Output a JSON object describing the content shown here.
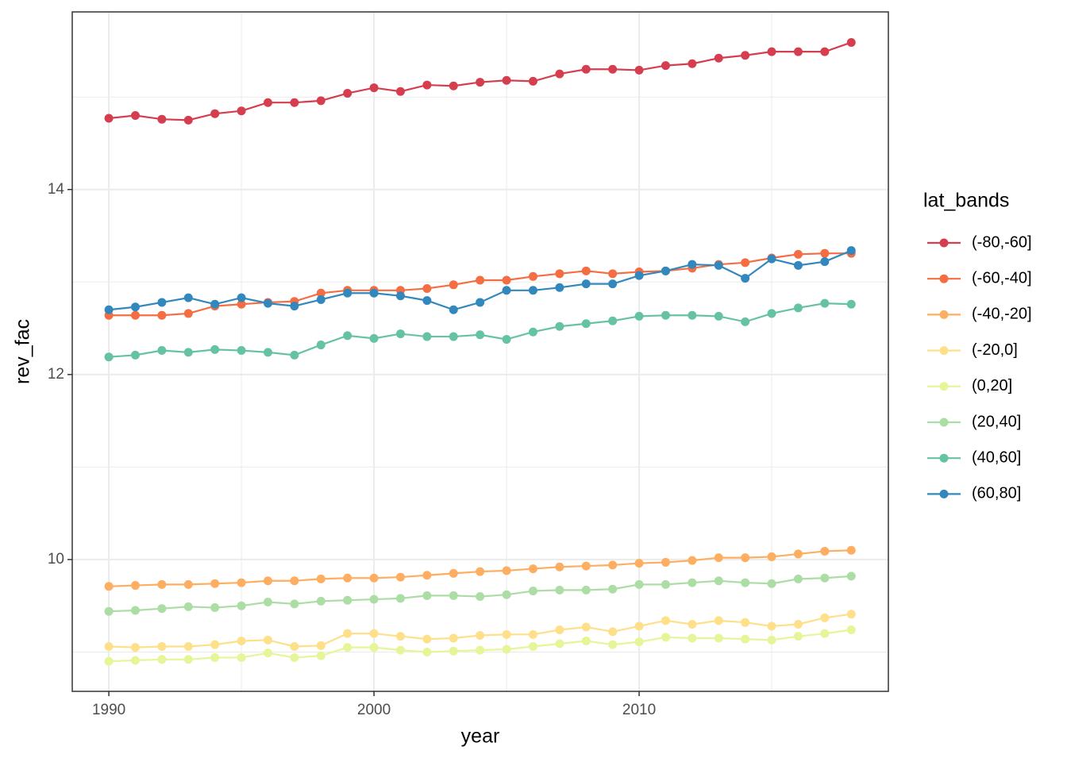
{
  "chart_data": {
    "type": "line",
    "x_label": "year",
    "y_label": "rev_fac",
    "legend_title": "lat_bands",
    "legend_position": "right",
    "grid": true,
    "x": [
      1990,
      1991,
      1992,
      1993,
      1994,
      1995,
      1996,
      1997,
      1998,
      1999,
      2000,
      2001,
      2002,
      2003,
      2004,
      2005,
      2006,
      2007,
      2008,
      2009,
      2010,
      2011,
      2012,
      2013,
      2014,
      2015,
      2016,
      2017,
      2018
    ],
    "xlim": [
      1988.62,
      2019.4
    ],
    "xticks": [
      1990,
      2000,
      2010
    ],
    "minor_xticks": [
      1995,
      2005,
      2015
    ],
    "ylim": [
      8.575,
      15.92
    ],
    "yticks": [
      10,
      12,
      14
    ],
    "minor_yticks": [
      9,
      11,
      13,
      15
    ],
    "series": [
      {
        "name": "(-80,-60]",
        "color": "#d53e4f",
        "values": [
          14.77,
          14.8,
          14.76,
          14.75,
          14.82,
          14.85,
          14.94,
          14.94,
          14.96,
          15.04,
          15.1,
          15.06,
          15.13,
          15.12,
          15.16,
          15.18,
          15.17,
          15.25,
          15.3,
          15.3,
          15.29,
          15.34,
          15.36,
          15.42,
          15.45,
          15.49,
          15.49,
          15.49,
          15.59
        ]
      },
      {
        "name": "(-60,-40]",
        "color": "#f46d43",
        "values": [
          12.64,
          12.64,
          12.64,
          12.66,
          12.74,
          12.76,
          12.78,
          12.79,
          12.88,
          12.91,
          12.91,
          12.91,
          12.93,
          12.97,
          13.02,
          13.02,
          13.06,
          13.09,
          13.12,
          13.09,
          13.11,
          13.12,
          13.15,
          13.19,
          13.21,
          13.26,
          13.3,
          13.31,
          13.31
        ]
      },
      {
        "name": "(-40,-20]",
        "color": "#fdae61",
        "values": [
          9.71,
          9.72,
          9.73,
          9.73,
          9.74,
          9.75,
          9.77,
          9.77,
          9.79,
          9.8,
          9.8,
          9.81,
          9.83,
          9.85,
          9.87,
          9.88,
          9.9,
          9.92,
          9.93,
          9.94,
          9.96,
          9.97,
          9.99,
          10.02,
          10.02,
          10.03,
          10.06,
          10.09,
          10.1
        ]
      },
      {
        "name": "(-20,0]",
        "color": "#fee08b",
        "values": [
          9.06,
          9.05,
          9.06,
          9.06,
          9.08,
          9.12,
          9.13,
          9.06,
          9.07,
          9.2,
          9.2,
          9.17,
          9.14,
          9.15,
          9.18,
          9.19,
          9.19,
          9.24,
          9.27,
          9.22,
          9.28,
          9.34,
          9.3,
          9.34,
          9.32,
          9.28,
          9.3,
          9.37,
          9.41
        ]
      },
      {
        "name": "(0,20]",
        "color": "#e6f598",
        "values": [
          8.9,
          8.91,
          8.92,
          8.92,
          8.94,
          8.94,
          8.99,
          8.94,
          8.96,
          9.05,
          9.05,
          9.02,
          9.0,
          9.01,
          9.02,
          9.03,
          9.06,
          9.09,
          9.12,
          9.08,
          9.11,
          9.16,
          9.15,
          9.15,
          9.14,
          9.13,
          9.17,
          9.2,
          9.24
        ]
      },
      {
        "name": "(20,40]",
        "color": "#abdda4",
        "values": [
          9.44,
          9.45,
          9.47,
          9.49,
          9.48,
          9.5,
          9.54,
          9.52,
          9.55,
          9.56,
          9.57,
          9.58,
          9.61,
          9.61,
          9.6,
          9.62,
          9.66,
          9.67,
          9.67,
          9.68,
          9.73,
          9.73,
          9.75,
          9.77,
          9.75,
          9.74,
          9.79,
          9.8,
          9.82
        ]
      },
      {
        "name": "(40,60]",
        "color": "#66c2a5",
        "values": [
          12.19,
          12.21,
          12.26,
          12.24,
          12.27,
          12.26,
          12.24,
          12.21,
          12.32,
          12.42,
          12.39,
          12.44,
          12.41,
          12.41,
          12.43,
          12.38,
          12.46,
          12.52,
          12.55,
          12.58,
          12.63,
          12.64,
          12.64,
          12.63,
          12.57,
          12.66,
          12.72,
          12.77,
          12.76
        ]
      },
      {
        "name": "(60,80]",
        "color": "#3288bd",
        "values": [
          12.7,
          12.73,
          12.78,
          12.83,
          12.76,
          12.83,
          12.77,
          12.74,
          12.81,
          12.88,
          12.88,
          12.85,
          12.8,
          12.7,
          12.78,
          12.91,
          12.91,
          12.94,
          12.98,
          12.98,
          13.07,
          13.12,
          13.19,
          13.18,
          13.04,
          13.25,
          13.18,
          13.22,
          13.34
        ]
      }
    ]
  }
}
